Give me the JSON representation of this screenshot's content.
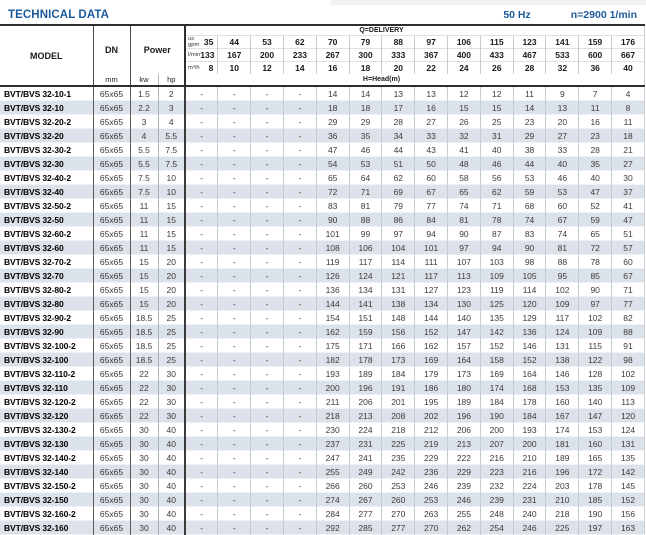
{
  "header_bar": {
    "title": "TECHNICAL DATA",
    "frequency": "50 Hz",
    "speed": "n=2900 1/min"
  },
  "table": {
    "corner": {
      "model": "MODEL",
      "dn": "DN",
      "dn_unit": "mm",
      "power": "Power",
      "kw": "kw",
      "hp": "hp"
    },
    "delivery_label": "Q=DELIVERY",
    "head_label": "H=Head(m)",
    "unit_rows": [
      {
        "unit_lines": [
          "us",
          "gpm"
        ],
        "values": [
          35,
          44,
          53,
          62,
          70,
          79,
          88,
          97,
          106,
          115,
          123,
          141,
          159,
          176
        ]
      },
      {
        "unit_lines": [
          "l/min"
        ],
        "values": [
          133,
          167,
          200,
          233,
          267,
          300,
          333,
          367,
          400,
          433,
          467,
          533,
          600,
          667
        ]
      },
      {
        "unit_lines": [
          "m³/h"
        ],
        "values": [
          8,
          10,
          12,
          14,
          16,
          18,
          20,
          22,
          24,
          26,
          28,
          32,
          36,
          40
        ]
      }
    ],
    "rows": [
      {
        "model": "BVT/BVS 32-10-1",
        "dn": "65x65",
        "kw": "1.5",
        "hp": "2",
        "head": [
          "-",
          "-",
          "-",
          "-",
          14,
          14,
          13,
          13,
          12,
          12,
          11,
          9,
          7,
          4
        ]
      },
      {
        "model": "BVT/BVS 32-10",
        "dn": "65x65",
        "kw": "2.2",
        "hp": "3",
        "head": [
          "-",
          "-",
          "-",
          "-",
          18,
          18,
          17,
          16,
          15,
          15,
          14,
          13,
          11,
          8
        ]
      },
      {
        "model": "BVT/BVS 32-20-2",
        "dn": "65x65",
        "kw": "3",
        "hp": "4",
        "head": [
          "-",
          "-",
          "-",
          "-",
          29,
          29,
          28,
          27,
          26,
          25,
          23,
          20,
          16,
          11
        ]
      },
      {
        "model": "BVT/BVS 32-20",
        "dn": "65x65",
        "kw": "4",
        "hp": "5.5",
        "head": [
          "-",
          "-",
          "-",
          "-",
          36,
          35,
          34,
          33,
          32,
          31,
          29,
          27,
          23,
          18
        ]
      },
      {
        "model": "BVT/BVS 32-30-2",
        "dn": "65x65",
        "kw": "5.5",
        "hp": "7.5",
        "head": [
          "-",
          "-",
          "-",
          "-",
          47,
          46,
          44,
          43,
          41,
          40,
          38,
          33,
          28,
          21
        ]
      },
      {
        "model": "BVT/BVS 32-30",
        "dn": "65x65",
        "kw": "5.5",
        "hp": "7.5",
        "head": [
          "-",
          "-",
          "-",
          "-",
          54,
          53,
          51,
          50,
          48,
          46,
          44,
          40,
          35,
          27
        ]
      },
      {
        "model": "BVT/BVS 32-40-2",
        "dn": "65x65",
        "kw": "7.5",
        "hp": "10",
        "head": [
          "-",
          "-",
          "-",
          "-",
          65,
          64,
          62,
          60,
          58,
          56,
          53,
          46,
          40,
          30
        ]
      },
      {
        "model": "BVT/BVS 32-40",
        "dn": "65x65",
        "kw": "7.5",
        "hp": "10",
        "head": [
          "-",
          "-",
          "-",
          "-",
          72,
          71,
          69,
          67,
          65,
          62,
          59,
          53,
          47,
          37
        ]
      },
      {
        "model": "BVT/BVS 32-50-2",
        "dn": "65x65",
        "kw": "11",
        "hp": "15",
        "head": [
          "-",
          "-",
          "-",
          "-",
          83,
          81,
          79,
          77,
          74,
          71,
          68,
          60,
          52,
          41
        ]
      },
      {
        "model": "BVT/BVS 32-50",
        "dn": "65x65",
        "kw": "11",
        "hp": "15",
        "head": [
          "-",
          "-",
          "-",
          "-",
          90,
          88,
          86,
          84,
          81,
          78,
          74,
          67,
          59,
          47
        ]
      },
      {
        "model": "BVT/BVS 32-60-2",
        "dn": "65x65",
        "kw": "11",
        "hp": "15",
        "head": [
          "-",
          "-",
          "-",
          "-",
          101,
          99,
          97,
          94,
          90,
          87,
          83,
          74,
          65,
          51
        ]
      },
      {
        "model": "BVT/BVS 32-60",
        "dn": "65x65",
        "kw": "11",
        "hp": "15",
        "head": [
          "-",
          "-",
          "-",
          "-",
          108,
          106,
          104,
          101,
          97,
          94,
          90,
          81,
          72,
          57
        ]
      },
      {
        "model": "BVT/BVS 32-70-2",
        "dn": "65x65",
        "kw": "15",
        "hp": "20",
        "head": [
          "-",
          "-",
          "-",
          "-",
          119,
          117,
          114,
          111,
          107,
          103,
          98,
          88,
          78,
          60
        ]
      },
      {
        "model": "BVT/BVS 32-70",
        "dn": "65x65",
        "kw": "15",
        "hp": "20",
        "head": [
          "-",
          "-",
          "-",
          "-",
          126,
          124,
          121,
          117,
          113,
          109,
          105,
          95,
          85,
          67
        ]
      },
      {
        "model": "BVT/BVS 32-80-2",
        "dn": "65x65",
        "kw": "15",
        "hp": "20",
        "head": [
          "-",
          "-",
          "-",
          "-",
          136,
          134,
          131,
          127,
          123,
          119,
          114,
          102,
          90,
          71
        ]
      },
      {
        "model": "BVT/BVS 32-80",
        "dn": "65x65",
        "kw": "15",
        "hp": "20",
        "head": [
          "-",
          "-",
          "-",
          "-",
          144,
          141,
          138,
          134,
          130,
          125,
          120,
          109,
          97,
          77
        ]
      },
      {
        "model": "BVT/BVS 32-90-2",
        "dn": "65x65",
        "kw": "18.5",
        "hp": "25",
        "head": [
          "-",
          "-",
          "-",
          "-",
          154,
          151,
          148,
          144,
          140,
          135,
          129,
          117,
          102,
          82
        ]
      },
      {
        "model": "BVT/BVS 32-90",
        "dn": "65x65",
        "kw": "18.5",
        "hp": "25",
        "head": [
          "-",
          "-",
          "-",
          "-",
          162,
          159,
          156,
          152,
          147,
          142,
          136,
          124,
          109,
          88
        ]
      },
      {
        "model": "BVT/BVS 32-100-2",
        "dn": "65x65",
        "kw": "18.5",
        "hp": "25",
        "head": [
          "-",
          "-",
          "-",
          "-",
          175,
          171,
          166,
          162,
          157,
          152,
          146,
          131,
          115,
          91
        ]
      },
      {
        "model": "BVT/BVS 32-100",
        "dn": "65x65",
        "kw": "18.5",
        "hp": "25",
        "head": [
          "-",
          "-",
          "-",
          "-",
          182,
          178,
          173,
          169,
          164,
          158,
          152,
          138,
          122,
          98
        ]
      },
      {
        "model": "BVT/BVS 32-110-2",
        "dn": "65x65",
        "kw": "22",
        "hp": "30",
        "head": [
          "-",
          "-",
          "-",
          "-",
          193,
          189,
          184,
          179,
          173,
          169,
          164,
          146,
          128,
          102
        ]
      },
      {
        "model": "BVT/BVS 32-110",
        "dn": "65x65",
        "kw": "22",
        "hp": "30",
        "head": [
          "-",
          "-",
          "-",
          "-",
          200,
          196,
          191,
          186,
          180,
          174,
          168,
          153,
          135,
          109
        ]
      },
      {
        "model": "BVT/BVS 32-120-2",
        "dn": "65x65",
        "kw": "22",
        "hp": "30",
        "head": [
          "-",
          "-",
          "-",
          "-",
          211,
          206,
          201,
          195,
          189,
          184,
          178,
          160,
          140,
          113
        ]
      },
      {
        "model": "BVT/BVS 32-120",
        "dn": "65x65",
        "kw": "22",
        "hp": "30",
        "head": [
          "-",
          "-",
          "-",
          "-",
          218,
          213,
          208,
          202,
          196,
          190,
          184,
          167,
          147,
          120
        ]
      },
      {
        "model": "BVT/BVS 32-130-2",
        "dn": "65x65",
        "kw": "30",
        "hp": "40",
        "head": [
          "-",
          "-",
          "-",
          "-",
          230,
          224,
          218,
          212,
          206,
          200,
          193,
          174,
          153,
          124
        ]
      },
      {
        "model": "BVT/BVS 32-130",
        "dn": "65x65",
        "kw": "30",
        "hp": "40",
        "head": [
          "-",
          "-",
          "-",
          "-",
          237,
          231,
          225,
          219,
          213,
          207,
          200,
          181,
          160,
          131
        ]
      },
      {
        "model": "BVT/BVS 32-140-2",
        "dn": "65x65",
        "kw": "30",
        "hp": "40",
        "head": [
          "-",
          "-",
          "-",
          "-",
          247,
          241,
          235,
          229,
          222,
          216,
          210,
          189,
          165,
          135
        ]
      },
      {
        "model": "BVT/BVS 32-140",
        "dn": "65x65",
        "kw": "30",
        "hp": "40",
        "head": [
          "-",
          "-",
          "-",
          "-",
          255,
          249,
          242,
          236,
          229,
          223,
          216,
          196,
          172,
          142
        ]
      },
      {
        "model": "BVT/BVS 32-150-2",
        "dn": "65x65",
        "kw": "30",
        "hp": "40",
        "head": [
          "-",
          "-",
          "-",
          "-",
          266,
          260,
          253,
          246,
          239,
          232,
          224,
          203,
          178,
          145
        ]
      },
      {
        "model": "BVT/BVS 32-150",
        "dn": "65x65",
        "kw": "30",
        "hp": "40",
        "head": [
          "-",
          "-",
          "-",
          "-",
          274,
          267,
          260,
          253,
          246,
          239,
          231,
          210,
          185,
          152
        ]
      },
      {
        "model": "BVT/BVS 32-160-2",
        "dn": "65x65",
        "kw": "30",
        "hp": "40",
        "head": [
          "-",
          "-",
          "-",
          "-",
          284,
          277,
          270,
          263,
          255,
          248,
          240,
          218,
          190,
          156
        ]
      },
      {
        "model": "BVT/BVS 32-160",
        "dn": "65x65",
        "kw": "30",
        "hp": "40",
        "head": [
          "-",
          "-",
          "-",
          "-",
          292,
          285,
          277,
          270,
          262,
          254,
          246,
          225,
          197,
          163
        ]
      }
    ]
  }
}
